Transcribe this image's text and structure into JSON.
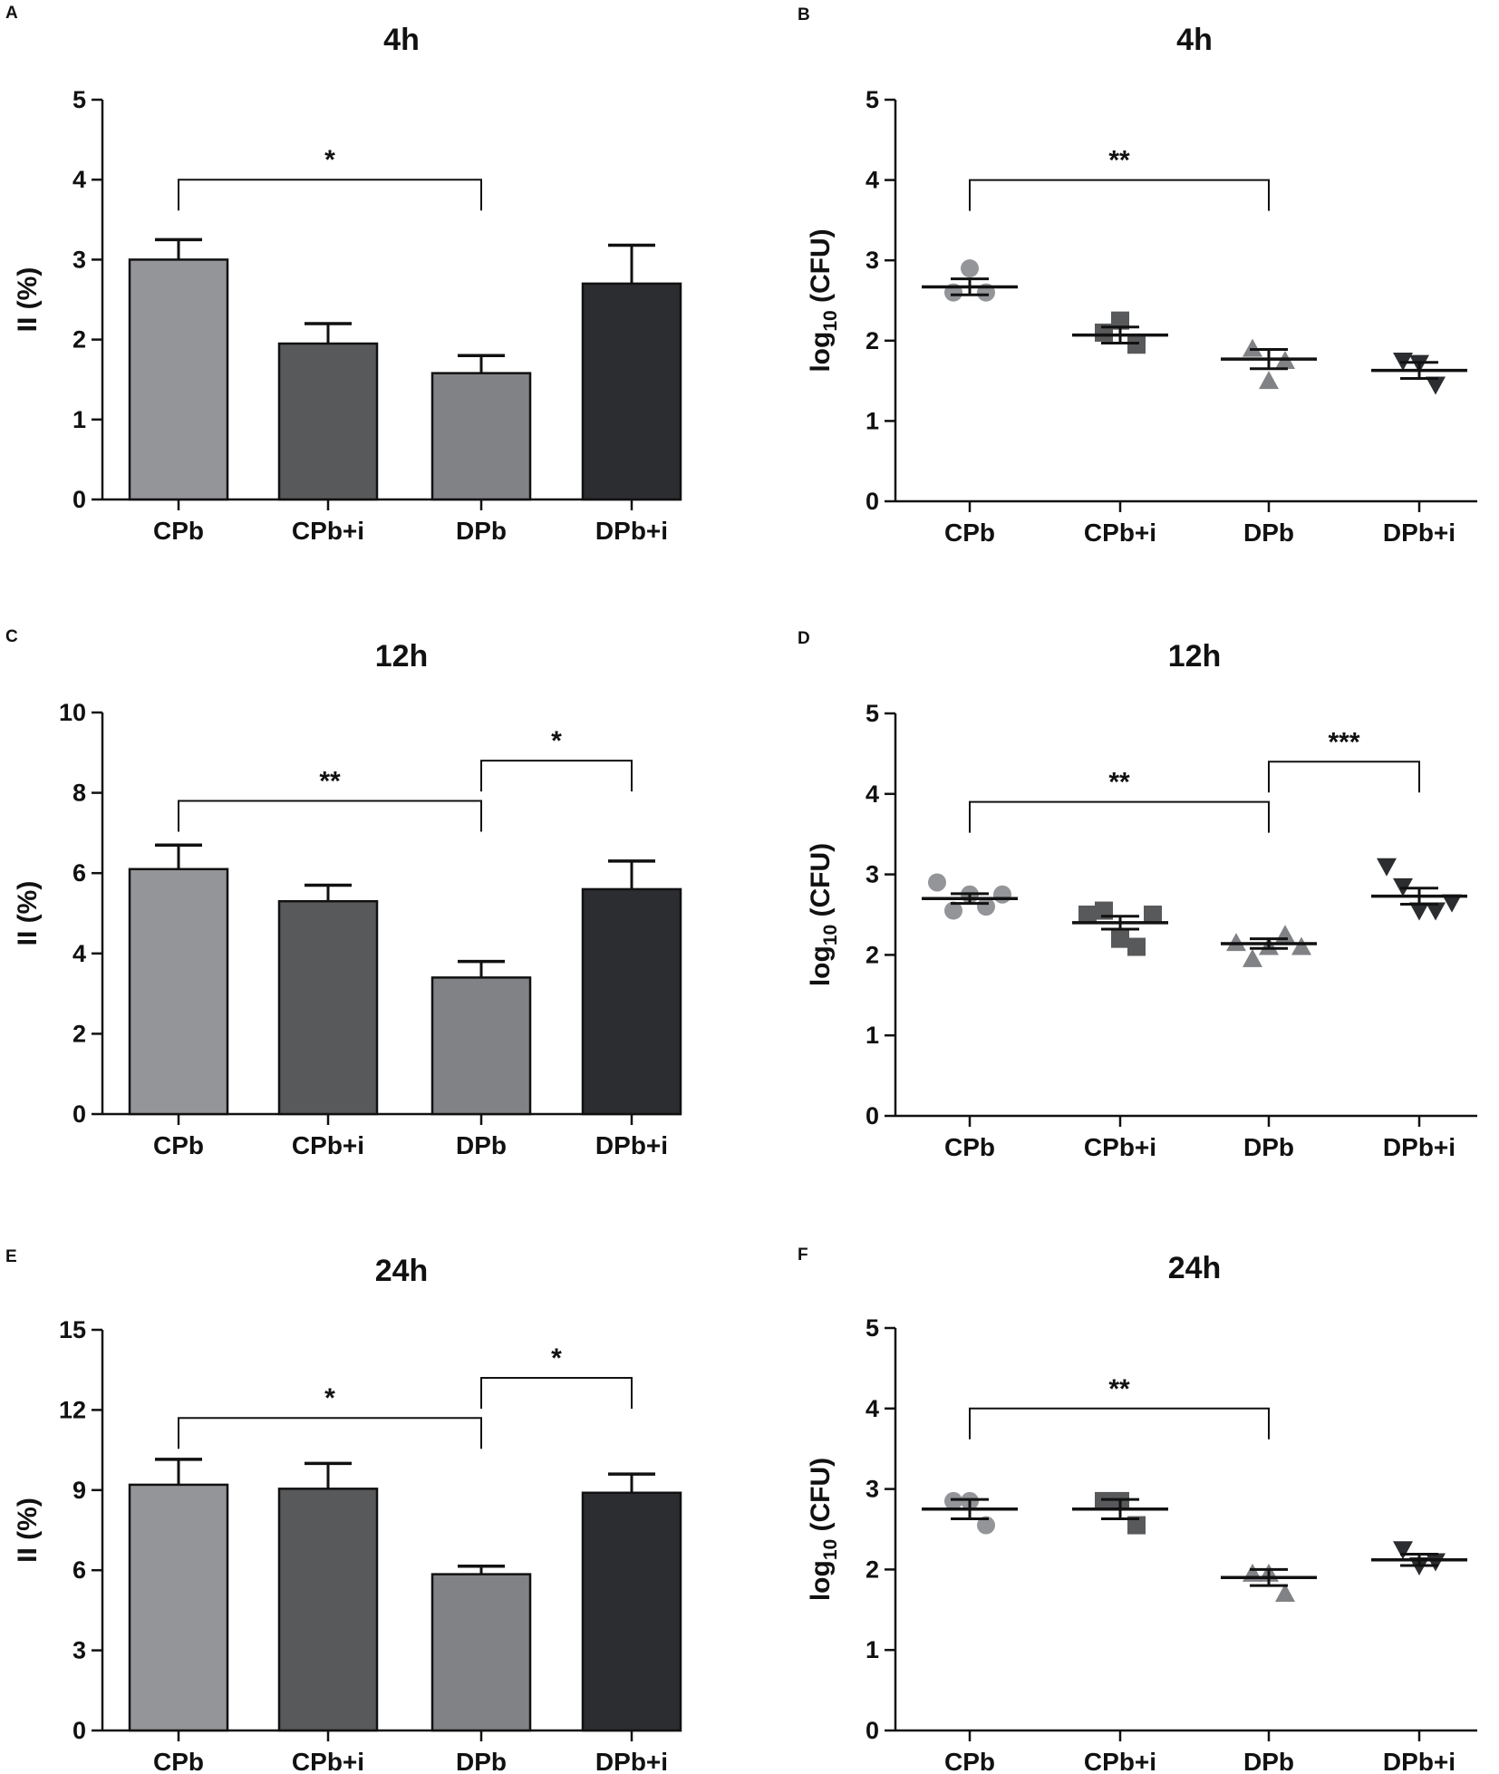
{
  "figure": {
    "panels": [
      "A",
      "B",
      "C",
      "D",
      "E",
      "F"
    ]
  },
  "chart_data": [
    {
      "panel": "A",
      "type": "bar",
      "title": "4h",
      "xlabel": "",
      "ylabel": "II (%)",
      "categories": [
        "CPb",
        "CPb+i",
        "DPb",
        "DPb+i"
      ],
      "values": [
        3.0,
        1.95,
        1.58,
        2.7
      ],
      "errors": [
        0.25,
        0.25,
        0.22,
        0.48
      ],
      "colors": [
        "#939598",
        "#58595b",
        "#808285",
        "#2b2d30"
      ],
      "ylim": [
        0,
        5
      ],
      "yticks": [
        0,
        1,
        2,
        3,
        4,
        5
      ],
      "significance": [
        {
          "from": 0,
          "to": 2,
          "label": "*",
          "level": 4.0
        }
      ]
    },
    {
      "panel": "B",
      "type": "scatter",
      "title": "4h",
      "xlabel": "",
      "ylabel": "log10 (CFU)",
      "ylabel_parts": {
        "pre": "log",
        "sub": "10",
        "post": " (CFU)"
      },
      "categories": [
        "CPb",
        "CPb+i",
        "DPb",
        "DPb+i"
      ],
      "markers": [
        "circle",
        "square",
        "triangle-up",
        "triangle-down"
      ],
      "colors": [
        "#939598",
        "#58595b",
        "#808285",
        "#2b2d30"
      ],
      "points": [
        [
          2.6,
          2.9,
          2.6
        ],
        [
          2.1,
          2.25,
          1.95
        ],
        [
          1.9,
          1.5,
          1.75
        ],
        [
          1.75,
          1.72,
          1.45
        ]
      ],
      "means": [
        2.67,
        2.07,
        1.77,
        1.63
      ],
      "sems": [
        0.1,
        0.1,
        0.12,
        0.1
      ],
      "ylim": [
        0,
        5
      ],
      "yticks": [
        0,
        1,
        2,
        3,
        4,
        5
      ],
      "significance": [
        {
          "from": 0,
          "to": 2,
          "label": "**",
          "level": 4.0
        }
      ]
    },
    {
      "panel": "C",
      "type": "bar",
      "title": "12h",
      "xlabel": "",
      "ylabel": "II (%)",
      "categories": [
        "CPb",
        "CPb+i",
        "DPb",
        "DPb+i"
      ],
      "values": [
        6.1,
        5.3,
        3.4,
        5.6
      ],
      "errors": [
        0.6,
        0.4,
        0.4,
        0.7
      ],
      "colors": [
        "#939598",
        "#58595b",
        "#808285",
        "#2b2d30"
      ],
      "ylim": [
        0,
        10
      ],
      "yticks": [
        0,
        2,
        4,
        6,
        8,
        10
      ],
      "significance": [
        {
          "from": 0,
          "to": 2,
          "label": "**",
          "level": 7.8
        },
        {
          "from": 2,
          "to": 3,
          "label": "*",
          "level": 8.8
        }
      ]
    },
    {
      "panel": "D",
      "type": "scatter",
      "title": "12h",
      "xlabel": "",
      "ylabel": "log10 (CFU)",
      "ylabel_parts": {
        "pre": "log",
        "sub": "10",
        "post": " (CFU)"
      },
      "categories": [
        "CPb",
        "CPb+i",
        "DPb",
        "DPb+i"
      ],
      "markers": [
        "circle",
        "square",
        "triangle-up",
        "triangle-down"
      ],
      "colors": [
        "#939598",
        "#58595b",
        "#808285",
        "#2b2d30"
      ],
      "points": [
        [
          2.9,
          2.55,
          2.75,
          2.6,
          2.75
        ],
        [
          2.5,
          2.55,
          2.2,
          2.1,
          2.5
        ],
        [
          2.15,
          1.95,
          2.1,
          2.25,
          2.1
        ],
        [
          3.1,
          2.85,
          2.55,
          2.55,
          2.65
        ]
      ],
      "means": [
        2.7,
        2.4,
        2.14,
        2.73
      ],
      "sems": [
        0.06,
        0.08,
        0.06,
        0.1
      ],
      "ylim": [
        0,
        5
      ],
      "yticks": [
        0,
        1,
        2,
        3,
        4,
        5
      ],
      "significance": [
        {
          "from": 0,
          "to": 2,
          "label": "**",
          "level": 3.9
        },
        {
          "from": 2,
          "to": 3,
          "label": "***",
          "level": 4.4
        }
      ]
    },
    {
      "panel": "E",
      "type": "bar",
      "title": "24h",
      "xlabel": "",
      "ylabel": "II (%)",
      "categories": [
        "CPb",
        "CPb+i",
        "DPb",
        "DPb+i"
      ],
      "values": [
        9.2,
        9.05,
        5.85,
        8.9
      ],
      "errors": [
        0.95,
        0.95,
        0.3,
        0.7
      ],
      "colors": [
        "#939598",
        "#58595b",
        "#808285",
        "#2b2d30"
      ],
      "ylim": [
        0,
        15
      ],
      "yticks": [
        0,
        3,
        6,
        9,
        12,
        15
      ],
      "significance": [
        {
          "from": 0,
          "to": 2,
          "label": "*",
          "level": 11.7
        },
        {
          "from": 2,
          "to": 3,
          "label": "*",
          "level": 13.2
        }
      ]
    },
    {
      "panel": "F",
      "type": "scatter",
      "title": "24h",
      "xlabel": "",
      "ylabel": "log10 (CFU)",
      "ylabel_parts": {
        "pre": "log",
        "sub": "10",
        "post": " (CFU)"
      },
      "categories": [
        "CPb",
        "CPb+i",
        "DPb",
        "DPb+i"
      ],
      "markers": [
        "circle",
        "square",
        "triangle-up",
        "triangle-down"
      ],
      "colors": [
        "#939598",
        "#58595b",
        "#808285",
        "#2b2d30"
      ],
      "points": [
        [
          2.85,
          2.85,
          2.55
        ],
        [
          2.85,
          2.85,
          2.55
        ],
        [
          1.95,
          1.95,
          1.7
        ],
        [
          2.25,
          2.05,
          2.1
        ]
      ],
      "means": [
        2.75,
        2.75,
        1.9,
        2.12
      ],
      "sems": [
        0.12,
        0.12,
        0.1,
        0.07
      ],
      "ylim": [
        0,
        5
      ],
      "yticks": [
        0,
        1,
        2,
        3,
        4,
        5
      ],
      "significance": [
        {
          "from": 0,
          "to": 2,
          "label": "**",
          "level": 4.0
        }
      ]
    }
  ]
}
